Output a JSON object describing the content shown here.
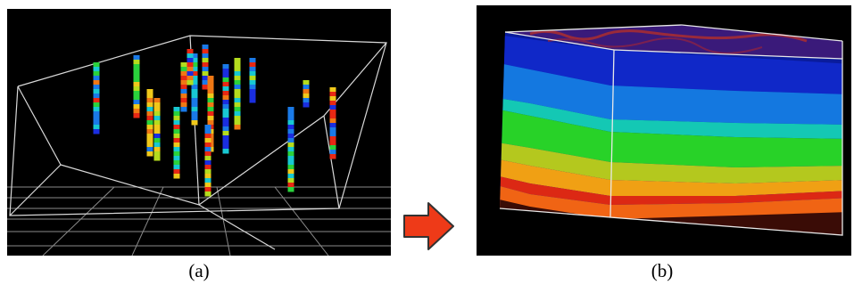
{
  "panels": [
    {
      "id": "a",
      "caption": "(a)"
    },
    {
      "id": "b",
      "caption": "(b)"
    }
  ],
  "colors": {
    "background": "#000000",
    "frame": "#dcdcdc",
    "arrow_fill": "#ee3a18",
    "arrow_stroke": "#333333",
    "layer_colors": [
      "#1028c8",
      "#1478e0",
      "#14c8b4",
      "#28d228",
      "#b4c81e",
      "#f0a014",
      "#dc2814",
      "#f06414"
    ]
  },
  "icons": {
    "transition": "right-arrow-icon"
  }
}
